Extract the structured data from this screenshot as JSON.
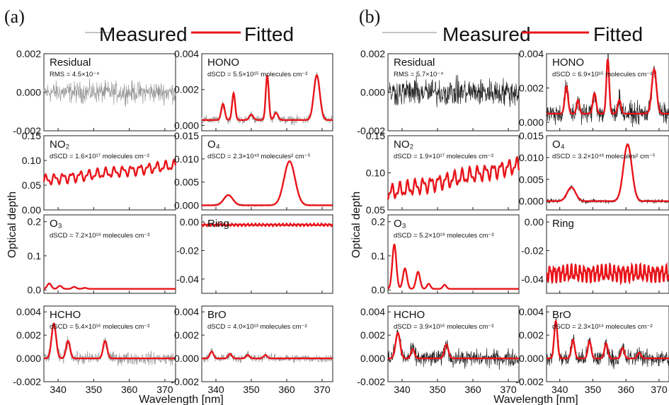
{
  "figure": {
    "legend": {
      "measured": "Measured",
      "fitted": "Fitted"
    },
    "colors": {
      "measured_a": "#9a9a9a",
      "measured_b": "#222222",
      "fitted": "#e8141a"
    },
    "xlabel": "Wavelength [nm]",
    "ylabel": "Optical depth"
  },
  "chart_data": [
    {
      "type": "line",
      "figure_label": "(a)",
      "x_ticks": [
        340,
        350,
        360,
        370
      ],
      "xlim": [
        336,
        373
      ],
      "rows": [
        [
          {
            "title": "Residual",
            "annot": "RMS = 4.5×10⁻⁴",
            "ylim": [
              -0.002,
              0.002
            ],
            "yticks": [
              -0.002,
              0.0,
              0.002
            ],
            "ytick_labels": [
              "-0.002",
              "0.000",
              "0.002"
            ],
            "measured": {
              "mean": 0.0,
              "noise": 0.00045
            },
            "fitted": null
          },
          {
            "title": "HONO",
            "annot": "dSCD = 5.5×10¹⁵ molecules cm⁻²",
            "ylim": [
              -0.0003,
              0.004
            ],
            "yticks": [
              0.0,
              0.002,
              0.004
            ],
            "ytick_labels": [
              "0.000",
              "0.002",
              "0.004"
            ],
            "fitted": {
              "baseline": 0.0003,
              "peaks": [
                [
                  342,
                  0.0009,
                  0.7
                ],
                [
                  345,
                  0.0015,
                  0.6
                ],
                [
                  350,
                  0.0003,
                  0.8
                ],
                [
                  354.5,
                  0.0025,
                  0.6
                ],
                [
                  357,
                  0.0004,
                  0.8
                ],
                [
                  368.5,
                  0.0025,
                  1.2
                ]
              ]
            },
            "measured": {
              "noise": 0.0002
            }
          }
        ],
        [
          {
            "title": "NO₂",
            "annot": "dSCD = 1.6×10¹⁷ molecules cm⁻²",
            "ylim": [
              0.0,
              0.15
            ],
            "yticks": [
              0.0,
              0.05,
              0.1,
              0.15
            ],
            "ytick_labels": [
              "0.00",
              "0.05",
              "0.10",
              "0.15"
            ],
            "fitted": {
              "baseline_start": 0.06,
              "baseline_end": 0.09,
              "wave_amp": 0.008,
              "wave_period": 2.4
            },
            "measured": {
              "noise": 0.001
            }
          },
          {
            "title": "O₄",
            "annot": "dSCD = 2.3×10⁴³ molecules² cm⁻⁵",
            "ylim": [
              -0.001,
              0.015
            ],
            "yticks": [
              0.0,
              0.005,
              0.01,
              0.015
            ],
            "ytick_labels": [
              "0.000",
              "0.005",
              "0.010",
              "0.015"
            ],
            "fitted": {
              "baseline": 0.0,
              "peaks": [
                [
                  343.5,
                  0.0022,
                  1.8
                ],
                [
                  360.8,
                  0.0095,
                  2.2
                ]
              ]
            },
            "measured": {
              "noise": 0.0002
            }
          }
        ],
        [
          {
            "title": "O₃",
            "annot": "dSCD = 7.2×10¹⁸ molecules cm⁻²",
            "ylim": [
              -0.01,
              0.22
            ],
            "yticks": [
              0.0,
              0.1,
              0.2
            ],
            "ytick_labels": [
              "0.0",
              "0.1",
              "0.2"
            ],
            "fitted": {
              "baseline": 0.003,
              "peaks": [
                [
                  337.5,
                  0.016,
                  0.8
                ],
                [
                  340.5,
                  0.009,
                  0.8
                ],
                [
                  344.5,
                  0.006,
                  0.8
                ],
                [
                  347.5,
                  0.003,
                  0.8
                ]
              ]
            },
            "measured": {
              "noise": 0.0008
            }
          },
          {
            "title": "Ring",
            "annot": "",
            "ylim": [
              -0.05,
              0.005
            ],
            "yticks": [
              -0.04,
              -0.02,
              0.0
            ],
            "ytick_labels": [
              "-0.04",
              "-0.02",
              "0.00"
            ],
            "fitted": {
              "baseline": -0.002,
              "wave_amp": 0.0006,
              "wave_period": 1.1
            },
            "measured": {
              "noise": 0.0005
            }
          }
        ],
        [
          {
            "title": "HCHO",
            "annot": "dSCD = 5.4×10¹⁶ molecules cm⁻²",
            "ylim": [
              -0.002,
              0.0045
            ],
            "yticks": [
              -0.002,
              0.0,
              0.002,
              0.004
            ],
            "ytick_labels": [
              "-0.002",
              "0.000",
              "0.002",
              "0.004"
            ],
            "fitted": {
              "baseline": 0.0,
              "peaks": [
                [
                  338.8,
                  0.003,
                  0.9
                ],
                [
                  342.8,
                  0.0015,
                  0.8
                ],
                [
                  353.2,
                  0.0015,
                  0.8
                ]
              ]
            },
            "measured": {
              "noise": 0.00045
            }
          },
          {
            "title": "BrO",
            "annot": "dSCD = 4.0×10¹³ molecules cm⁻²",
            "ylim": [
              -0.002,
              0.0045
            ],
            "yticks": [
              -0.002,
              0.0,
              0.002,
              0.004
            ],
            "ytick_labels": [
              "-0.002",
              "0.000",
              "0.002",
              "0.004"
            ],
            "fitted": {
              "baseline": 0.0,
              "peaks": [
                [
                  338.8,
                  0.0006,
                  0.7
                ],
                [
                  344,
                  0.0004,
                  0.7
                ],
                [
                  349,
                  0.0003,
                  0.7
                ],
                [
                  354,
                  0.0003,
                  0.7
                ]
              ]
            },
            "measured": {
              "noise": 0.0003
            }
          }
        ]
      ]
    },
    {
      "type": "line",
      "figure_label": "(b)",
      "x_ticks": [
        340,
        350,
        360,
        370
      ],
      "xlim": [
        336,
        373
      ],
      "rows": [
        [
          {
            "title": "Residual",
            "annot": "RMS = 5.7×10⁻⁴",
            "ylim": [
              -0.002,
              0.002
            ],
            "yticks": [
              -0.002,
              0.0,
              0.002
            ],
            "ytick_labels": [
              "-0.002",
              "0.000",
              "0.002"
            ],
            "measured": {
              "mean": 0.0,
              "noise": 0.00057
            },
            "fitted": null
          },
          {
            "title": "HONO",
            "annot": "dSCD = 6.9×10¹⁵ molecules cm⁻²",
            "ylim": [
              -0.0005,
              0.004
            ],
            "yticks": [
              0.0,
              0.002,
              0.004
            ],
            "ytick_labels": [
              "0.000",
              "0.002",
              "0.004"
            ],
            "fitted": {
              "baseline": 0.0005,
              "peaks": [
                [
                  342,
                  0.0016,
                  0.7
                ],
                [
                  345.5,
                  0.0008,
                  0.6
                ],
                [
                  350.5,
                  0.0012,
                  0.7
                ],
                [
                  354.5,
                  0.0032,
                  0.6
                ],
                [
                  358,
                  0.0008,
                  0.7
                ],
                [
                  368.5,
                  0.0026,
                  1.0
                ]
              ]
            },
            "measured": {
              "noise": 0.0005
            }
          }
        ],
        [
          {
            "title": "NO₂",
            "annot": "dSCD = 1.9×10¹⁷ molecules cm⁻²",
            "ylim": [
              0.05,
              0.15
            ],
            "yticks": [
              0.05,
              0.1,
              0.15
            ],
            "ytick_labels": [
              "0.05",
              "0.10",
              "0.15"
            ],
            "fitted": {
              "baseline_start": 0.073,
              "baseline_end": 0.11,
              "wave_amp": 0.008,
              "wave_period": 2.2
            },
            "measured": {
              "noise": 0.0015
            }
          },
          {
            "title": "O₄",
            "annot": "dSCD = 3.2×10⁴³ molecules² cm⁻⁵",
            "ylim": [
              -0.002,
              0.015
            ],
            "yticks": [
              0.0,
              0.005,
              0.01,
              0.015
            ],
            "ytick_labels": [
              "0.000",
              "0.005",
              "0.010",
              "0.015"
            ],
            "fitted": {
              "baseline": 0.0,
              "peaks": [
                [
                  343.5,
                  0.0032,
                  1.8
                ],
                [
                  360.5,
                  0.013,
                  1.8
                ]
              ]
            },
            "measured": {
              "noise": 0.0004
            }
          }
        ],
        [
          {
            "title": "O₃",
            "annot": "dSCD = 5.2×10¹⁹ molecules cm⁻²",
            "ylim": [
              -0.01,
              0.22
            ],
            "yticks": [
              0.0,
              0.1,
              0.2
            ],
            "ytick_labels": [
              "0.0",
              "0.1",
              "0.2"
            ],
            "fitted": {
              "baseline": 0.003,
              "peaks": [
                [
                  337.8,
                  0.13,
                  0.8
                ],
                [
                  340.8,
                  0.06,
                  0.8
                ],
                [
                  344.5,
                  0.05,
                  0.8
                ],
                [
                  347.5,
                  0.015,
                  0.7
                ],
                [
                  352,
                  0.012,
                  0.7
                ]
              ]
            },
            "measured": {
              "noise": 0.001
            }
          },
          {
            "title": "Ring",
            "annot": "",
            "ylim": [
              -0.05,
              0.005
            ],
            "yticks": [
              -0.04,
              -0.02,
              0.0
            ],
            "ytick_labels": [
              "-0.04",
              "-0.02",
              "0.00"
            ],
            "fitted": {
              "baseline": -0.036,
              "wave_amp": 0.0045,
              "wave_period": 1.3
            },
            "measured": {
              "noise": 0.0008
            }
          }
        ],
        [
          {
            "title": "HCHO",
            "annot": "dSCD = 3.9×10¹⁶ molecules cm⁻²",
            "ylim": [
              -0.002,
              0.0045
            ],
            "yticks": [
              -0.002,
              0.0,
              0.002,
              0.004
            ],
            "ytick_labels": [
              "-0.002",
              "0.000",
              "0.002",
              "0.004"
            ],
            "fitted": {
              "baseline": 0.0,
              "peaks": [
                [
                  338.8,
                  0.0022,
                  0.9
                ],
                [
                  343,
                  0.0008,
                  0.7
                ],
                [
                  352.5,
                  0.0012,
                  0.8
                ]
              ]
            },
            "measured": {
              "noise": 0.0006
            }
          },
          {
            "title": "BrO",
            "annot": "dSCD = 2.3×10¹⁴ molecules cm⁻²",
            "ylim": [
              -0.002,
              0.0045
            ],
            "yticks": [
              -0.002,
              0.0,
              0.002,
              0.004
            ],
            "ytick_labels": [
              "-0.002",
              "0.000",
              "0.002",
              "0.004"
            ],
            "fitted": {
              "baseline": 0.0,
              "peaks": [
                [
                  338.8,
                  0.0032,
                  0.7
                ],
                [
                  344,
                  0.0016,
                  0.7
                ],
                [
                  349,
                  0.0015,
                  0.7
                ],
                [
                  354,
                  0.0013,
                  0.7
                ],
                [
                  359,
                  0.0009,
                  0.7
                ],
                [
                  364,
                  0.0005,
                  0.7
                ]
              ]
            },
            "measured": {
              "noise": 0.0006
            }
          }
        ]
      ]
    }
  ]
}
